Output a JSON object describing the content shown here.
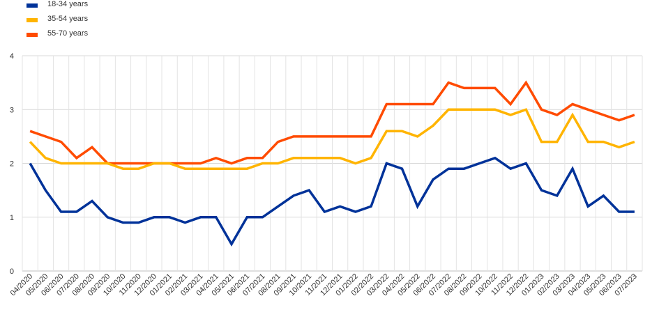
{
  "chart_data": {
    "type": "line",
    "categories": [
      "04/2020",
      "05/2020",
      "06/2020",
      "07/2020",
      "08/2020",
      "09/2020",
      "10/2020",
      "11/2020",
      "12/2020",
      "01/2021",
      "02/2021",
      "03/2021",
      "04/2021",
      "05/2021",
      "06/2021",
      "07/2021",
      "08/2021",
      "09/2021",
      "10/2021",
      "11/2021",
      "12/2021",
      "01/2022",
      "02/2022",
      "03/2022",
      "04/2022",
      "05/2022",
      "06/2022",
      "07/2022",
      "08/2022",
      "09/2022",
      "10/2022",
      "11/2022",
      "12/2022",
      "01/2023",
      "02/2023",
      "03/2023",
      "04/2023",
      "05/2023",
      "06/2023",
      "07/2023"
    ],
    "series": [
      {
        "name": "18-34 years",
        "color": "#003299",
        "values": [
          2.0,
          1.5,
          1.1,
          1.1,
          1.3,
          1.0,
          0.9,
          0.9,
          1.0,
          1.0,
          0.9,
          1.0,
          1.0,
          0.5,
          1.0,
          1.0,
          1.2,
          1.4,
          1.5,
          1.1,
          1.2,
          1.1,
          1.2,
          2.0,
          1.9,
          1.2,
          1.7,
          1.9,
          1.9,
          2.0,
          2.1,
          1.9,
          2.0,
          1.5,
          1.4,
          1.9,
          1.2,
          1.4,
          1.1,
          1.1
        ]
      },
      {
        "name": "35-54 years",
        "color": "#FFB400",
        "values": [
          2.4,
          2.1,
          2.0,
          2.0,
          2.0,
          2.0,
          1.9,
          1.9,
          2.0,
          2.0,
          1.9,
          1.9,
          1.9,
          1.9,
          1.9,
          2.0,
          2.0,
          2.1,
          2.1,
          2.1,
          2.1,
          2.0,
          2.1,
          2.6,
          2.6,
          2.5,
          2.7,
          3.0,
          3.0,
          3.0,
          3.0,
          2.9,
          3.0,
          2.4,
          2.4,
          2.9,
          2.4,
          2.4,
          2.3,
          2.4
        ]
      },
      {
        "name": "55-70 years",
        "color": "#FF4B00",
        "values": [
          2.6,
          2.5,
          2.4,
          2.1,
          2.3,
          2.0,
          2.0,
          2.0,
          2.0,
          2.0,
          2.0,
          2.0,
          2.1,
          2.0,
          2.1,
          2.1,
          2.4,
          2.5,
          2.5,
          2.5,
          2.5,
          2.5,
          2.5,
          3.1,
          3.1,
          3.1,
          3.1,
          3.5,
          3.4,
          3.4,
          3.4,
          3.1,
          3.5,
          3.0,
          2.9,
          3.1,
          3.0,
          2.9,
          2.8,
          2.9
        ]
      }
    ],
    "y_ticks": [
      0,
      1,
      2,
      3,
      4
    ],
    "ylim": [
      0,
      4
    ],
    "grid": "horizontal and vertical",
    "legend_position": "top-left"
  }
}
